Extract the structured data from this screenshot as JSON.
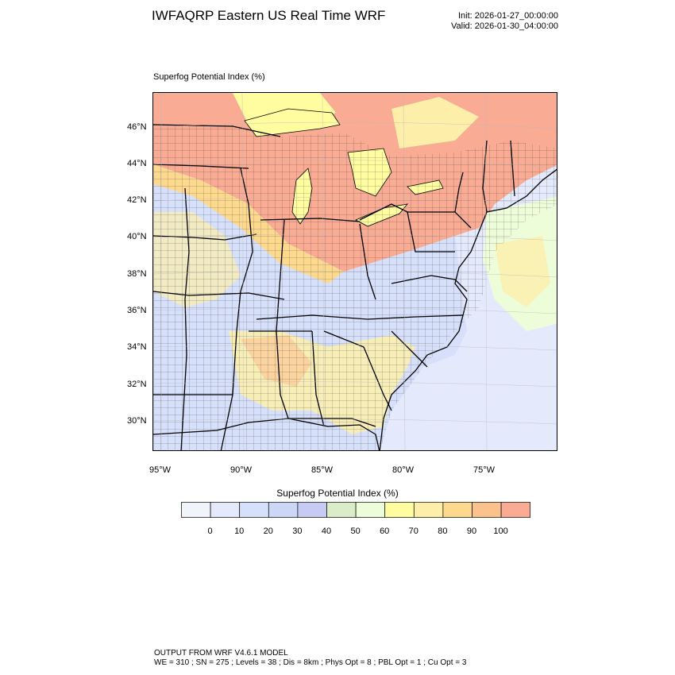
{
  "title": "IWFAQRP Eastern US Real Time WRF",
  "init": "Init: 2026-01-27_00:00:00",
  "valid": "Valid: 2026-01-30_04:00:00",
  "field_title": "Superfog Potential Index   (%)",
  "lat_labels": [
    "46°N",
    "44°N",
    "42°N",
    "40°N",
    "38°N",
    "36°N",
    "34°N",
    "32°N",
    "30°N"
  ],
  "lon_labels": [
    "95°W",
    "90°W",
    "85°W",
    "80°W",
    "75°W"
  ],
  "colorbar": {
    "title": "Superfog Potential Index  (%)",
    "labels": [
      "0",
      "10",
      "20",
      "30",
      "40",
      "50",
      "60",
      "70",
      "80",
      "90",
      "100"
    ],
    "colors": [
      "#f1f4fb",
      "#e4eafb",
      "#d7e0fb",
      "#ccd6f7",
      "#c7cbf3",
      "#dbecc8",
      "#eefdd9",
      "#fffda0",
      "#fdeeaa",
      "#fdd98e",
      "#fbc28d",
      "#f9ab93"
    ]
  },
  "footer": {
    "model": "OUTPUT FROM WRF V4.6.1 MODEL",
    "params": "WE = 310 ; SN = 275 ; Levels = 38 ; Dis = 8km ; Phys Opt = 8 ; PBL Opt = 1 ; Cu Opt = 3"
  }
}
